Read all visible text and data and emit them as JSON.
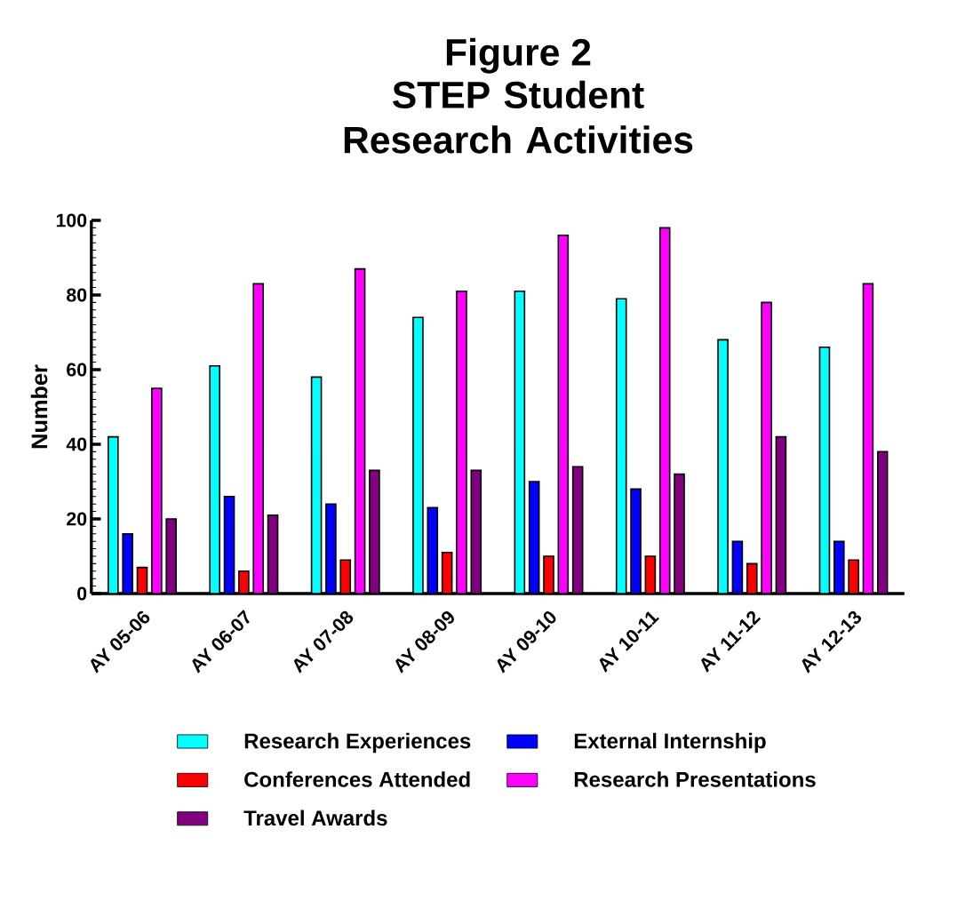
{
  "chart_data": {
    "type": "bar",
    "title": "Figure 2",
    "subtitle": "STEP Student Research Activities",
    "ylabel": "Number",
    "categories": [
      "AY 05-06",
      "AY 06-07",
      "AY 07-08",
      "AY 08-09",
      "AY 09-10",
      "AY 10-11",
      "AY 11-12",
      "AY 12-13"
    ],
    "series": [
      {
        "name": "Research Experiences",
        "color": "#00ffff",
        "values": [
          42,
          61,
          58,
          74,
          81,
          79,
          68,
          66
        ]
      },
      {
        "name": "External Internship",
        "color": "#0000ff",
        "values": [
          16,
          26,
          24,
          23,
          30,
          28,
          14,
          14
        ]
      },
      {
        "name": "Conferences Attended",
        "color": "#ff0000",
        "values": [
          7,
          6,
          9,
          11,
          10,
          10,
          8,
          9
        ]
      },
      {
        "name": "Research Presentations",
        "color": "#ff00ff",
        "values": [
          55,
          83,
          87,
          81,
          96,
          98,
          78,
          83
        ]
      },
      {
        "name": "Travel Awards",
        "color": "#800080",
        "values": [
          20,
          21,
          33,
          33,
          34,
          32,
          42,
          38
        ]
      }
    ],
    "ylim": [
      0,
      100
    ],
    "yticks": [
      0,
      20,
      40,
      60,
      80,
      100
    ],
    "grid": false,
    "legend": "bottom"
  }
}
